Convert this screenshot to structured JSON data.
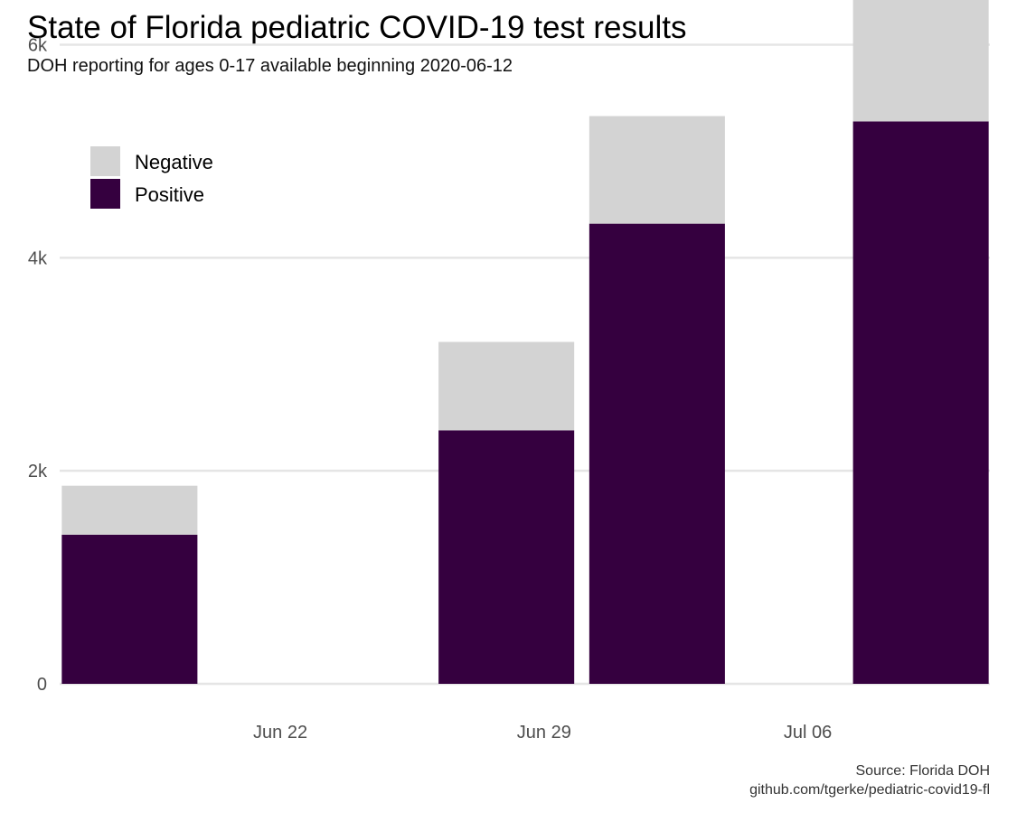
{
  "title": "State of Florida pediatric COVID-19 test results",
  "subtitle": "DOH reporting for ages 0-17 available beginning 2020-06-12",
  "caption": {
    "source": "Source: Florida DOH",
    "url": "github.com/tgerke/pediatric-covid19-fl"
  },
  "colors": {
    "negative": "#d3d3d3",
    "positive": "#35003f",
    "grid": "#e5e5e5"
  },
  "chart_data": {
    "type": "bar",
    "stacked": true,
    "x_axis": {
      "type": "date",
      "range": [
        "2020-06-16",
        "2020-07-11"
      ],
      "ticks": [
        {
          "date": "2020-06-22",
          "label": "Jun 22"
        },
        {
          "date": "2020-06-29",
          "label": "Jun 29"
        },
        {
          "date": "2020-07-06",
          "label": "Jul 06"
        }
      ]
    },
    "y_axis": {
      "range": [
        0,
        6420
      ],
      "ticks": [
        {
          "value": 0,
          "label": "0"
        },
        {
          "value": 2000,
          "label": "2k"
        },
        {
          "value": 4000,
          "label": "4k"
        },
        {
          "value": 6000,
          "label": "6k"
        }
      ]
    },
    "bar_width_days": 3.6,
    "dates": [
      "2020-06-18",
      "2020-06-28",
      "2020-07-02",
      "2020-07-09"
    ],
    "series": [
      {
        "name": "Positive",
        "color_key": "positive",
        "values": [
          1400,
          2380,
          4320,
          5280
        ]
      },
      {
        "name": "Negative",
        "color_key": "negative",
        "values": [
          460,
          830,
          1010,
          1140
        ]
      }
    ],
    "legend": {
      "position": "top-left",
      "entries": [
        {
          "label": "Negative",
          "color_key": "negative"
        },
        {
          "label": "Positive",
          "color_key": "positive"
        }
      ]
    },
    "grid": {
      "y_major": true,
      "x_major": false
    }
  }
}
